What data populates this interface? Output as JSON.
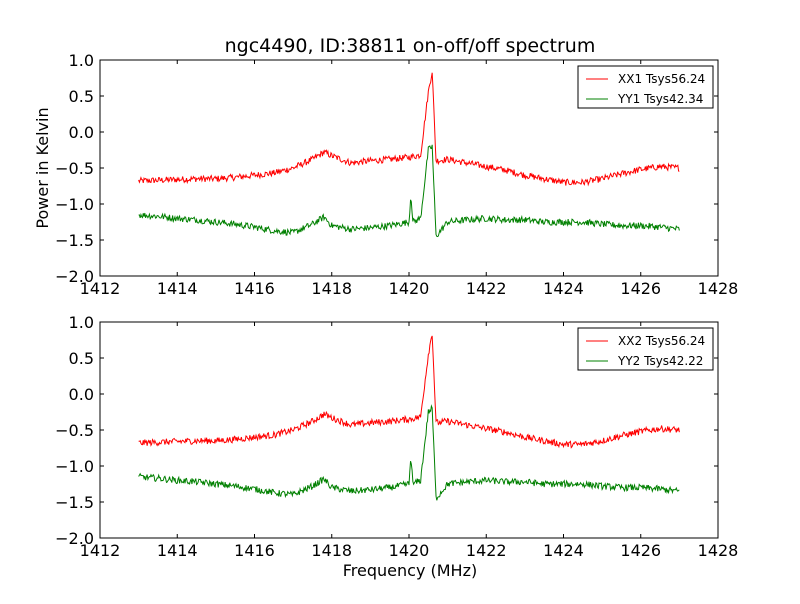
{
  "chart_data": [
    {
      "type": "line",
      "title": "ngc4490, ID:38811 on-off/off spectrum",
      "xlabel": "",
      "ylabel": "Power in Kelvin",
      "xlim": [
        1412,
        1428
      ],
      "ylim": [
        -2.0,
        1.0
      ],
      "xticks": [
        "1412",
        "1414",
        "1416",
        "1418",
        "1420",
        "1422",
        "1424",
        "1426",
        "1428"
      ],
      "yticks": [
        "1.0",
        "0.5",
        "0.0",
        "−0.5",
        "−1.0",
        "−1.5",
        "−2.0"
      ],
      "legend_position": "top-right",
      "series": [
        {
          "name": "XX1 Tsys56.24",
          "color": "#ff0000",
          "x": [
            1413.0,
            1413.5,
            1414.0,
            1414.5,
            1415.0,
            1415.5,
            1416.0,
            1416.5,
            1417.0,
            1417.5,
            1417.8,
            1418.0,
            1418.5,
            1419.0,
            1419.5,
            1420.0,
            1420.3,
            1420.5,
            1420.6,
            1420.7,
            1421.0,
            1421.5,
            1422.0,
            1422.5,
            1423.0,
            1423.5,
            1424.0,
            1424.5,
            1425.0,
            1425.5,
            1426.0,
            1426.5,
            1427.0
          ],
          "y": [
            -0.68,
            -0.67,
            -0.66,
            -0.65,
            -0.65,
            -0.63,
            -0.6,
            -0.57,
            -0.5,
            -0.38,
            -0.28,
            -0.33,
            -0.43,
            -0.4,
            -0.38,
            -0.35,
            -0.32,
            0.55,
            0.85,
            -0.4,
            -0.38,
            -0.43,
            -0.48,
            -0.53,
            -0.6,
            -0.65,
            -0.7,
            -0.7,
            -0.65,
            -0.58,
            -0.52,
            -0.48,
            -0.5
          ]
        },
        {
          "name": "YY1 Tsys42.34",
          "color": "#008000",
          "x": [
            1413.0,
            1413.5,
            1414.0,
            1414.5,
            1415.0,
            1415.5,
            1416.0,
            1416.5,
            1417.0,
            1417.5,
            1417.8,
            1418.0,
            1418.5,
            1419.0,
            1419.5,
            1420.0,
            1420.05,
            1420.1,
            1420.3,
            1420.5,
            1420.6,
            1420.7,
            1421.0,
            1421.5,
            1422.0,
            1422.5,
            1423.0,
            1423.5,
            1424.0,
            1424.5,
            1425.0,
            1425.5,
            1426.0,
            1426.5,
            1427.0
          ],
          "y": [
            -1.15,
            -1.17,
            -1.2,
            -1.22,
            -1.25,
            -1.28,
            -1.32,
            -1.37,
            -1.4,
            -1.28,
            -1.18,
            -1.3,
            -1.35,
            -1.33,
            -1.3,
            -1.25,
            -0.85,
            -1.25,
            -1.2,
            -0.25,
            -0.2,
            -1.45,
            -1.25,
            -1.22,
            -1.2,
            -1.22,
            -1.22,
            -1.25,
            -1.25,
            -1.25,
            -1.28,
            -1.3,
            -1.3,
            -1.32,
            -1.35
          ]
        }
      ]
    },
    {
      "type": "line",
      "title": "",
      "xlabel": "Frequency (MHz)",
      "ylabel": "",
      "xlim": [
        1412,
        1428
      ],
      "ylim": [
        -2.0,
        1.0
      ],
      "xticks": [
        "1412",
        "1414",
        "1416",
        "1418",
        "1420",
        "1422",
        "1424",
        "1426",
        "1428"
      ],
      "yticks": [
        "1.0",
        "0.5",
        "0.0",
        "−0.5",
        "−1.0",
        "−1.5",
        "−2.0"
      ],
      "legend_position": "top-right",
      "series": [
        {
          "name": "XX2 Tsys56.24",
          "color": "#ff0000",
          "x": [
            1413.0,
            1413.5,
            1414.0,
            1414.5,
            1415.0,
            1415.5,
            1416.0,
            1416.5,
            1417.0,
            1417.5,
            1417.8,
            1418.0,
            1418.5,
            1419.0,
            1419.5,
            1420.0,
            1420.3,
            1420.5,
            1420.6,
            1420.7,
            1421.0,
            1421.5,
            1422.0,
            1422.5,
            1423.0,
            1423.5,
            1424.0,
            1424.5,
            1425.0,
            1425.5,
            1426.0,
            1426.5,
            1427.0
          ],
          "y": [
            -0.68,
            -0.67,
            -0.66,
            -0.65,
            -0.65,
            -0.63,
            -0.6,
            -0.57,
            -0.5,
            -0.38,
            -0.28,
            -0.33,
            -0.43,
            -0.4,
            -0.38,
            -0.35,
            -0.32,
            0.55,
            0.85,
            -0.4,
            -0.38,
            -0.43,
            -0.48,
            -0.53,
            -0.6,
            -0.65,
            -0.7,
            -0.7,
            -0.65,
            -0.58,
            -0.52,
            -0.48,
            -0.5
          ]
        },
        {
          "name": "YY2 Tsys42.22",
          "color": "#008000",
          "x": [
            1413.0,
            1413.5,
            1414.0,
            1414.5,
            1415.0,
            1415.5,
            1416.0,
            1416.5,
            1417.0,
            1417.5,
            1417.8,
            1418.0,
            1418.5,
            1419.0,
            1419.5,
            1420.0,
            1420.05,
            1420.1,
            1420.3,
            1420.5,
            1420.6,
            1420.7,
            1421.0,
            1421.5,
            1422.0,
            1422.5,
            1423.0,
            1423.5,
            1424.0,
            1424.5,
            1425.0,
            1425.5,
            1426.0,
            1426.5,
            1427.0
          ],
          "y": [
            -1.15,
            -1.17,
            -1.2,
            -1.22,
            -1.25,
            -1.28,
            -1.32,
            -1.37,
            -1.4,
            -1.28,
            -1.18,
            -1.3,
            -1.35,
            -1.33,
            -1.3,
            -1.25,
            -0.85,
            -1.25,
            -1.2,
            -0.25,
            -0.2,
            -1.45,
            -1.25,
            -1.22,
            -1.2,
            -1.22,
            -1.22,
            -1.25,
            -1.25,
            -1.25,
            -1.28,
            -1.3,
            -1.3,
            -1.32,
            -1.35
          ]
        }
      ]
    }
  ]
}
